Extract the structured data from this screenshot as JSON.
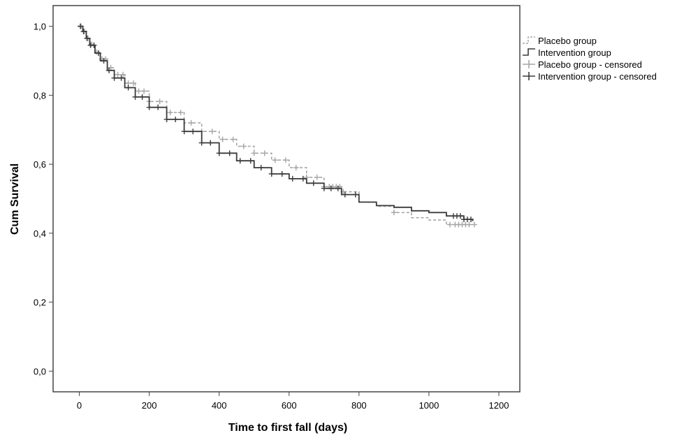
{
  "chart_data": {
    "type": "line",
    "title": "",
    "xlabel": "Time to first fall (days)",
    "ylabel": "Cum Survival",
    "xlim": [
      -75,
      1260
    ],
    "ylim": [
      -0.06,
      1.06
    ],
    "x_ticks": [
      0,
      200,
      400,
      600,
      800,
      1000,
      1200
    ],
    "x_tick_labels": [
      "0",
      "200",
      "400",
      "600",
      "800",
      "1000",
      "1200"
    ],
    "y_ticks": [
      0.0,
      0.2,
      0.4,
      0.6,
      0.8,
      1.0
    ],
    "y_tick_labels": [
      "0,0",
      "0,2",
      "0,4",
      "0,6",
      "0,8",
      "1,0"
    ],
    "grid": false,
    "legend_position": "outside-right-top",
    "legend": [
      "Placebo group",
      "Intervention group",
      "Placebo group - censored",
      "Intervention group - censored"
    ],
    "series": [
      {
        "name": "Placebo group",
        "style": "dashed-step",
        "color": "#a6a6a6",
        "points": [
          [
            0,
            1.0
          ],
          [
            10,
            0.985
          ],
          [
            20,
            0.965
          ],
          [
            30,
            0.948
          ],
          [
            45,
            0.925
          ],
          [
            60,
            0.905
          ],
          [
            80,
            0.88
          ],
          [
            100,
            0.86
          ],
          [
            130,
            0.835
          ],
          [
            160,
            0.812
          ],
          [
            200,
            0.782
          ],
          [
            250,
            0.75
          ],
          [
            300,
            0.72
          ],
          [
            350,
            0.695
          ],
          [
            400,
            0.672
          ],
          [
            450,
            0.652
          ],
          [
            500,
            0.632
          ],
          [
            550,
            0.612
          ],
          [
            600,
            0.59
          ],
          [
            650,
            0.562
          ],
          [
            700,
            0.535
          ],
          [
            750,
            0.52
          ],
          [
            800,
            0.49
          ],
          [
            850,
            0.478
          ],
          [
            900,
            0.46
          ],
          [
            950,
            0.445
          ],
          [
            1000,
            0.438
          ],
          [
            1050,
            0.425
          ],
          [
            1130,
            0.425
          ]
        ],
        "censored_x": [
          5,
          15,
          25,
          35,
          50,
          65,
          75,
          90,
          110,
          125,
          140,
          155,
          170,
          185,
          200,
          230,
          260,
          290,
          320,
          350,
          380,
          410,
          440,
          470,
          500,
          530,
          560,
          590,
          620,
          650,
          680,
          700,
          715,
          725,
          735,
          745,
          755,
          900,
          1060,
          1075,
          1085,
          1095,
          1105,
          1115,
          1130
        ]
      },
      {
        "name": "Intervention group",
        "style": "solid-step",
        "color": "#3a3a3a",
        "points": [
          [
            0,
            1.0
          ],
          [
            10,
            0.985
          ],
          [
            20,
            0.965
          ],
          [
            30,
            0.945
          ],
          [
            45,
            0.922
          ],
          [
            60,
            0.9
          ],
          [
            80,
            0.872
          ],
          [
            100,
            0.85
          ],
          [
            130,
            0.822
          ],
          [
            160,
            0.795
          ],
          [
            200,
            0.765
          ],
          [
            250,
            0.73
          ],
          [
            300,
            0.695
          ],
          [
            350,
            0.662
          ],
          [
            400,
            0.632
          ],
          [
            450,
            0.61
          ],
          [
            500,
            0.59
          ],
          [
            550,
            0.572
          ],
          [
            600,
            0.558
          ],
          [
            650,
            0.545
          ],
          [
            700,
            0.53
          ],
          [
            750,
            0.512
          ],
          [
            800,
            0.49
          ],
          [
            850,
            0.48
          ],
          [
            900,
            0.475
          ],
          [
            950,
            0.465
          ],
          [
            1000,
            0.46
          ],
          [
            1050,
            0.45
          ],
          [
            1100,
            0.44
          ],
          [
            1125,
            0.435
          ]
        ],
        "censored_x": [
          3,
          12,
          22,
          32,
          42,
          55,
          70,
          85,
          100,
          120,
          140,
          160,
          180,
          200,
          225,
          250,
          275,
          300,
          325,
          350,
          375,
          400,
          430,
          460,
          490,
          520,
          550,
          580,
          610,
          640,
          670,
          700,
          720,
          740,
          760,
          790,
          1070,
          1080,
          1090,
          1100,
          1110,
          1120
        ]
      }
    ]
  }
}
